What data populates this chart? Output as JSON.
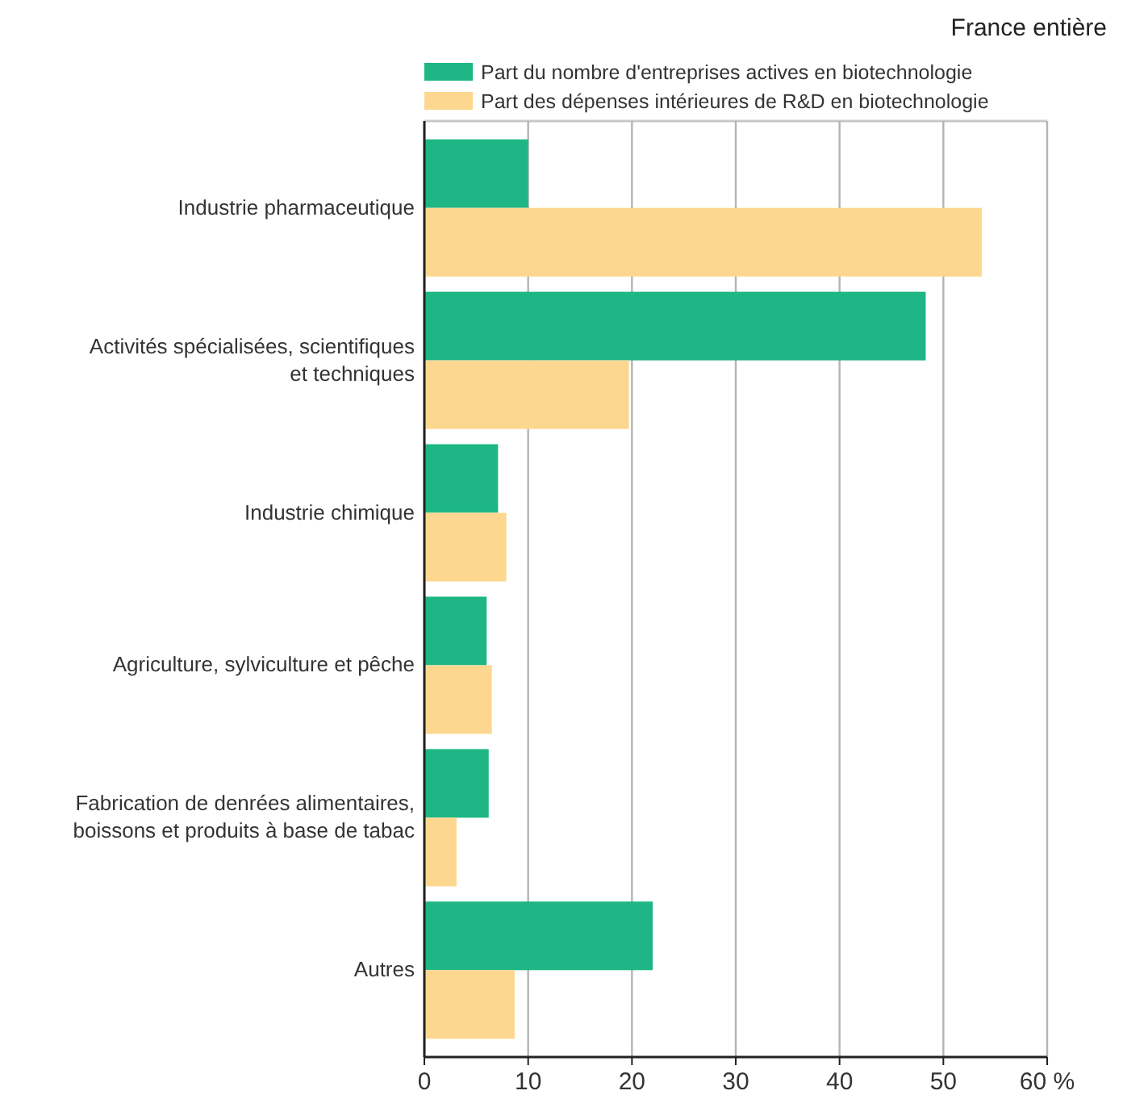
{
  "chart_data": {
    "type": "bar",
    "orientation": "horizontal",
    "categories": [
      "Industrie pharmaceutique",
      "Activités spécialisées, scientifiques et techniques",
      "Industrie chimique",
      "Agriculture, sylviculture et pêche",
      "Fabrication de denrées alimentaires, boissons et produits à base de tabac",
      "Autres"
    ],
    "series": [
      {
        "name": "Part du nombre d'entreprises actives en biotechnologie",
        "color": "#1fb686",
        "values": [
          10.0,
          48.3,
          7.1,
          6.0,
          6.2,
          22.0
        ]
      },
      {
        "name": "Part des dépenses intérieures de R&D en biotechnologie",
        "color": "#fdd78f",
        "values": [
          53.7,
          19.7,
          7.9,
          6.5,
          3.1,
          8.7
        ]
      }
    ],
    "xlim": [
      0,
      60
    ],
    "xticks": [
      0,
      10,
      20,
      30,
      40,
      50,
      {
        "value": 60,
        "label": "60 %"
      }
    ],
    "grid": "x",
    "legend": "top",
    "annotations": [
      "France entière"
    ]
  }
}
